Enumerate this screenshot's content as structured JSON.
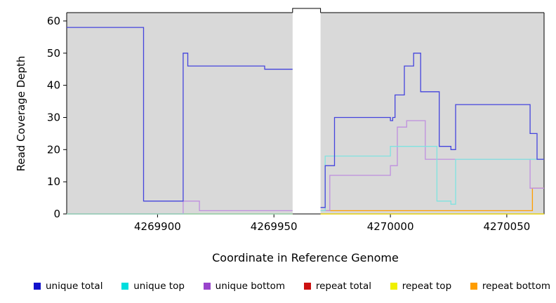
{
  "chart_data": {
    "type": "line",
    "subtype": "step",
    "title": "",
    "xlabel": "Coordinate in Reference Genome",
    "ylabel": "Read Coverage Depth",
    "xlim": [
      4269861,
      4270066
    ],
    "ylim": [
      0,
      62.6
    ],
    "xticks": [
      4269900,
      4269950,
      4270000,
      4270050
    ],
    "yticks": [
      0,
      10,
      20,
      30,
      40,
      50,
      60
    ],
    "grid": false,
    "plot_background": "#d9d9d9",
    "no_data_gap": [
      4269958,
      4269970
    ],
    "series": [
      {
        "name": "repeat total",
        "color": "#cc2222",
        "segments": [
          [
            [
              4269861,
              4269958,
              0
            ]
          ],
          [
            [
              4269970,
              4270066,
              0
            ]
          ]
        ]
      },
      {
        "name": "repeat top",
        "color": "#e8e800",
        "segments": [
          [
            [
              4269861,
              4269958,
              0
            ]
          ],
          [
            [
              4269970,
              4270066,
              0
            ]
          ]
        ]
      },
      {
        "name": "repeat bottom",
        "color": "#ff9d00",
        "segments": [
          [
            [
              4269861,
              4269958,
              0
            ]
          ],
          [
            [
              4269970,
              4270061,
              1
            ],
            [
              4270061,
              4270066,
              8
            ]
          ]
        ]
      },
      {
        "name": "unique bottom",
        "color": "#bf8fdf",
        "segments": [
          [
            [
              4269861,
              4269911,
              0
            ],
            [
              4269911,
              4269918,
              4
            ],
            [
              4269918,
              4269958,
              1
            ]
          ],
          [
            [
              4269970,
              4269974,
              1
            ],
            [
              4269974,
              4270000,
              12
            ],
            [
              4270000,
              4270003,
              15
            ],
            [
              4270003,
              4270007,
              27
            ],
            [
              4270007,
              4270015,
              29
            ],
            [
              4270015,
              4270060,
              17
            ],
            [
              4270060,
              4270066,
              8
            ]
          ]
        ]
      },
      {
        "name": "unique top",
        "color": "#7fe3e0",
        "segments": [
          [
            [
              4269861,
              4269958,
              0
            ]
          ],
          [
            [
              4269970,
              4269972,
              1
            ],
            [
              4269972,
              4270000,
              18
            ],
            [
              4270000,
              4270020,
              21
            ],
            [
              4270020,
              4270026,
              4
            ],
            [
              4270026,
              4270028,
              3
            ],
            [
              4270028,
              4270066,
              17
            ]
          ]
        ]
      },
      {
        "name": "unique total",
        "color": "#4444dd",
        "segments": [
          [
            [
              4269861,
              4269894,
              58
            ],
            [
              4269894,
              4269911,
              4
            ],
            [
              4269911,
              4269913,
              50
            ],
            [
              4269913,
              4269946,
              46
            ],
            [
              4269946,
              4269958,
              45
            ]
          ],
          [
            [
              4269970,
              4269972,
              2
            ],
            [
              4269972,
              4269976,
              15
            ],
            [
              4269976,
              4270000,
              30
            ],
            [
              4270000,
              4270001,
              29
            ],
            [
              4270001,
              4270002,
              30
            ],
            [
              4270002,
              4270006,
              37
            ],
            [
              4270006,
              4270010,
              46
            ],
            [
              4270010,
              4270013,
              50
            ],
            [
              4270013,
              4270021,
              38
            ],
            [
              4270021,
              4270026,
              21
            ],
            [
              4270026,
              4270028,
              20
            ],
            [
              4270028,
              4270060,
              34
            ],
            [
              4270060,
              4270063,
              25
            ],
            [
              4270063,
              4270066,
              17
            ]
          ]
        ]
      }
    ],
    "legend_position": "bottom",
    "legend": [
      {
        "label": "unique total",
        "color": "#1111cc"
      },
      {
        "label": "unique top",
        "color": "#00dede"
      },
      {
        "label": "unique bottom",
        "color": "#9944cc"
      },
      {
        "label": "repeat total",
        "color": "#cc1111"
      },
      {
        "label": "repeat top",
        "color": "#f0f000"
      },
      {
        "label": "repeat bottom",
        "color": "#ff9d00"
      }
    ]
  }
}
